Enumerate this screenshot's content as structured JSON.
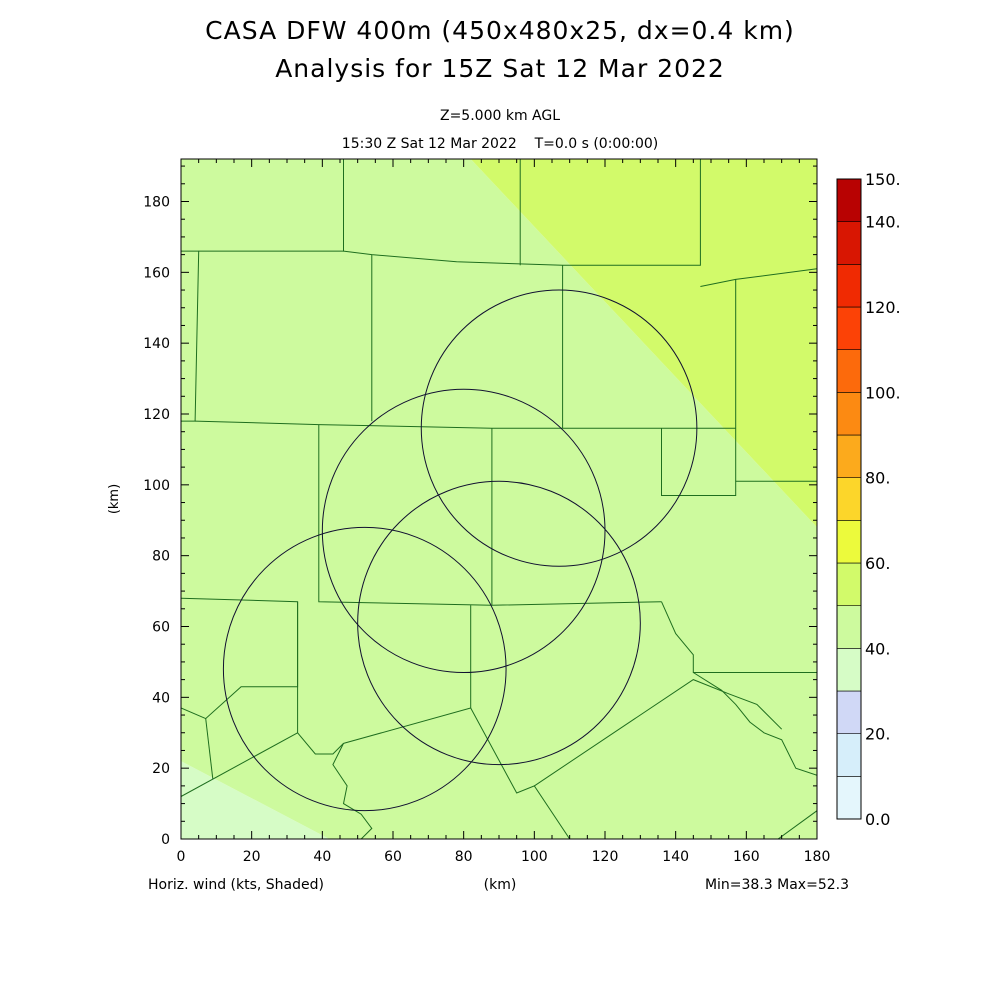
{
  "header": {
    "title_line1": "CASA DFW 400m (450x480x25, dx=0.4 km)",
    "title_line2": "Analysis for 15Z Sat 12 Mar 2022",
    "level": "Z=5.000 km AGL",
    "time": "15:30 Z Sat 12 Mar 2022    T=0.0 s (0:00:00)"
  },
  "footer": {
    "left": "Horiz. wind (kts, Shaded)",
    "center": "(km)",
    "right": "Min=38.3 Max=52.3"
  },
  "chart_data": {
    "type": "heatmap",
    "variable": "Horiz. wind (kts, Shaded)",
    "xlabel": "(km)",
    "ylabel": "(km)",
    "xlim": [
      0,
      180
    ],
    "ylim": [
      0,
      192
    ],
    "x_ticks": [
      0,
      20,
      40,
      60,
      80,
      100,
      120,
      140,
      160,
      180
    ],
    "y_ticks": [
      0,
      20,
      40,
      60,
      80,
      100,
      120,
      140,
      160,
      180
    ],
    "min": 38.3,
    "max": 52.3,
    "shading_regions": [
      {
        "range": [
          30,
          40
        ],
        "color": "#d6fcc6",
        "area": "lower-left corner",
        "polygon": [
          [
            0,
            22
          ],
          [
            0,
            0
          ],
          [
            42,
            0
          ]
        ]
      },
      {
        "range": [
          40,
          50
        ],
        "color": "#cdfa9e",
        "area": "most of domain",
        "polygon": [
          [
            0,
            22
          ],
          [
            42,
            0
          ],
          [
            180,
            0
          ],
          [
            180,
            88
          ],
          [
            82,
            192
          ],
          [
            0,
            192
          ]
        ]
      },
      {
        "range": [
          50,
          60
        ],
        "color": "#d2fa6a",
        "area": "upper-right",
        "polygon": [
          [
            82,
            192
          ],
          [
            180,
            192
          ],
          [
            180,
            88
          ]
        ]
      }
    ],
    "radar_rings": [
      {
        "center": [
          107,
          116
        ],
        "radius": 39
      },
      {
        "center": [
          80,
          87
        ],
        "radius": 40
      },
      {
        "center": [
          90,
          61
        ],
        "radius": 40
      },
      {
        "center": [
          52,
          48
        ],
        "radius": 40
      }
    ],
    "colorbar": {
      "labels": [
        "0.0",
        "20.",
        "40.",
        "60.",
        "80.",
        "100.",
        "120.",
        "140.",
        "150."
      ],
      "label_values": [
        0,
        20,
        40,
        60,
        80,
        100,
        120,
        140,
        150
      ],
      "bins": [
        {
          "from": 0,
          "to": 10,
          "color": "#e4f6fc"
        },
        {
          "from": 10,
          "to": 20,
          "color": "#d6eefa"
        },
        {
          "from": 20,
          "to": 30,
          "color": "#d0d8f6"
        },
        {
          "from": 30,
          "to": 40,
          "color": "#d6fcc6"
        },
        {
          "from": 40,
          "to": 50,
          "color": "#cdfa9e"
        },
        {
          "from": 50,
          "to": 60,
          "color": "#d2fa6a"
        },
        {
          "from": 60,
          "to": 70,
          "color": "#ecfa3c"
        },
        {
          "from": 70,
          "to": 80,
          "color": "#fcd62a"
        },
        {
          "from": 80,
          "to": 90,
          "color": "#fcaa1c"
        },
        {
          "from": 90,
          "to": 100,
          "color": "#fc8a12"
        },
        {
          "from": 100,
          "to": 110,
          "color": "#fc6a0c"
        },
        {
          "from": 110,
          "to": 120,
          "color": "#fc4206"
        },
        {
          "from": 120,
          "to": 130,
          "color": "#f02a02"
        },
        {
          "from": 130,
          "to": 140,
          "color": "#d81602"
        },
        {
          "from": 140,
          "to": 150,
          "color": "#b80202"
        }
      ]
    },
    "county_lines": [
      [
        [
          0,
          166
        ],
        [
          5,
          166
        ],
        [
          4,
          118
        ],
        [
          0,
          118
        ]
      ],
      [
        [
          5,
          166
        ],
        [
          46,
          166
        ],
        [
          46,
          192
        ]
      ],
      [
        [
          46,
          166
        ],
        [
          54,
          165
        ],
        [
          78,
          163
        ],
        [
          108,
          162
        ],
        [
          147,
          162
        ],
        [
          147,
          192
        ]
      ],
      [
        [
          54,
          165
        ],
        [
          54,
          118
        ]
      ],
      [
        [
          4,
          118
        ],
        [
          39,
          117
        ],
        [
          88,
          116
        ],
        [
          129,
          116
        ],
        [
          157,
          116
        ]
      ],
      [
        [
          108,
          162
        ],
        [
          108,
          116
        ]
      ],
      [
        [
          96,
          192
        ],
        [
          96,
          162
        ]
      ],
      [
        [
          147,
          156
        ],
        [
          157,
          158
        ],
        [
          180,
          161
        ]
      ],
      [
        [
          157,
          158
        ],
        [
          157,
          116
        ],
        [
          157,
          101
        ]
      ],
      [
        [
          39,
          117
        ],
        [
          39,
          67
        ],
        [
          88,
          66
        ],
        [
          136,
          67
        ]
      ],
      [
        [
          88,
          116
        ],
        [
          88,
          66
        ]
      ],
      [
        [
          136,
          116
        ],
        [
          136,
          97
        ],
        [
          157,
          97
        ],
        [
          157,
          101
        ],
        [
          180,
          101
        ],
        [
          180,
          47
        ]
      ],
      [
        [
          0,
          68
        ],
        [
          33,
          67
        ],
        [
          33,
          43
        ],
        [
          17,
          43
        ],
        [
          7,
          34
        ],
        [
          0,
          37
        ]
      ],
      [
        [
          33,
          67
        ],
        [
          33,
          30
        ],
        [
          38,
          24
        ],
        [
          43,
          24
        ],
        [
          46,
          27
        ]
      ],
      [
        [
          0,
          12
        ],
        [
          33,
          30
        ]
      ],
      [
        [
          7,
          34
        ],
        [
          9,
          17
        ]
      ],
      [
        [
          46,
          27
        ],
        [
          82,
          37
        ],
        [
          82,
          66
        ]
      ],
      [
        [
          82,
          37
        ],
        [
          95,
          13
        ],
        [
          100,
          15
        ],
        [
          110,
          0
        ]
      ],
      [
        [
          100,
          15
        ],
        [
          145,
          45
        ],
        [
          155,
          41
        ],
        [
          163,
          38
        ],
        [
          170,
          31
        ]
      ],
      [
        [
          136,
          67
        ],
        [
          140,
          58
        ],
        [
          145,
          52
        ],
        [
          145,
          47
        ],
        [
          180,
          47
        ]
      ],
      [
        [
          145,
          47
        ],
        [
          153,
          42
        ],
        [
          157,
          38
        ],
        [
          161,
          33
        ],
        [
          165,
          30
        ],
        [
          170,
          28
        ],
        [
          174,
          20
        ],
        [
          180,
          18
        ],
        [
          180,
          0
        ]
      ],
      [
        [
          46,
          27
        ],
        [
          43,
          21
        ],
        [
          47,
          15
        ],
        [
          46,
          10
        ],
        [
          51,
          7
        ],
        [
          54,
          3
        ],
        [
          51,
          0
        ]
      ],
      [
        [
          169,
          0
        ],
        [
          180,
          8
        ]
      ]
    ]
  }
}
